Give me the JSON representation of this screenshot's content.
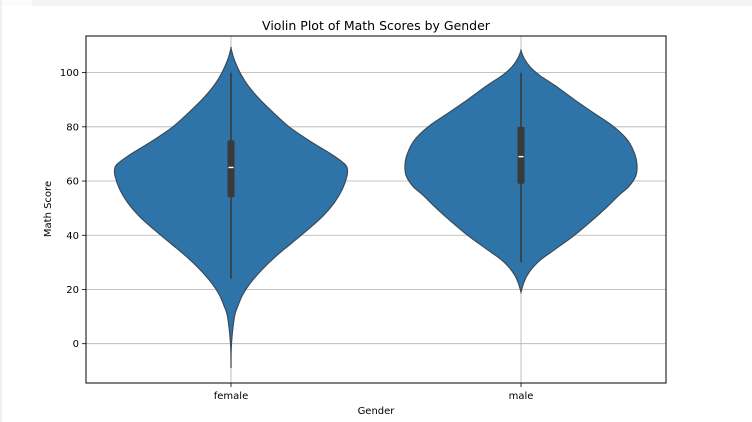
{
  "chart_data": {
    "type": "violin",
    "title": "Violin Plot of Math Scores by Gender",
    "xlabel": "Gender",
    "ylabel": "Math Score",
    "categories": [
      "female",
      "male"
    ],
    "ylim": [
      -14.5,
      113.5
    ],
    "yticks": [
      0,
      20,
      40,
      60,
      80,
      100
    ],
    "grid": true,
    "fill_color": "#2f74a8",
    "edge_color": "#3b4a57",
    "series": [
      {
        "category": "female",
        "q1": 54,
        "median": 65,
        "q3": 75,
        "whisker_low": 24,
        "whisker_high": 100,
        "min": -9,
        "max": 109,
        "density": [
          [
            -9,
            0.0
          ],
          [
            0,
            0.004
          ],
          [
            10,
            0.03
          ],
          [
            14,
            0.06
          ],
          [
            18,
            0.1
          ],
          [
            22,
            0.16
          ],
          [
            27,
            0.26
          ],
          [
            32,
            0.38
          ],
          [
            37,
            0.52
          ],
          [
            42,
            0.66
          ],
          [
            47,
            0.79
          ],
          [
            52,
            0.89
          ],
          [
            57,
            0.96
          ],
          [
            62,
            1.0
          ],
          [
            65,
            1.0
          ],
          [
            67,
            0.96
          ],
          [
            70,
            0.86
          ],
          [
            75,
            0.67
          ],
          [
            80,
            0.5
          ],
          [
            85,
            0.37
          ],
          [
            90,
            0.25
          ],
          [
            95,
            0.15
          ],
          [
            99,
            0.09
          ],
          [
            103,
            0.045
          ],
          [
            106,
            0.018
          ],
          [
            109,
            0.0
          ]
        ]
      },
      {
        "category": "male",
        "q1": 59,
        "median": 69,
        "q3": 80,
        "whisker_low": 30,
        "whisker_high": 100,
        "min": 19,
        "max": 108,
        "density": [
          [
            19,
            0.0
          ],
          [
            22,
            0.02
          ],
          [
            25,
            0.05
          ],
          [
            28,
            0.1
          ],
          [
            31,
            0.17
          ],
          [
            35,
            0.3
          ],
          [
            40,
            0.46
          ],
          [
            45,
            0.6
          ],
          [
            50,
            0.73
          ],
          [
            55,
            0.85
          ],
          [
            58,
            0.93
          ],
          [
            62,
            0.99
          ],
          [
            66,
            1.0
          ],
          [
            70,
            0.98
          ],
          [
            75,
            0.92
          ],
          [
            80,
            0.8
          ],
          [
            85,
            0.63
          ],
          [
            90,
            0.46
          ],
          [
            95,
            0.3
          ],
          [
            99,
            0.16
          ],
          [
            102,
            0.08
          ],
          [
            105,
            0.03
          ],
          [
            108,
            0.0
          ]
        ]
      }
    ]
  }
}
